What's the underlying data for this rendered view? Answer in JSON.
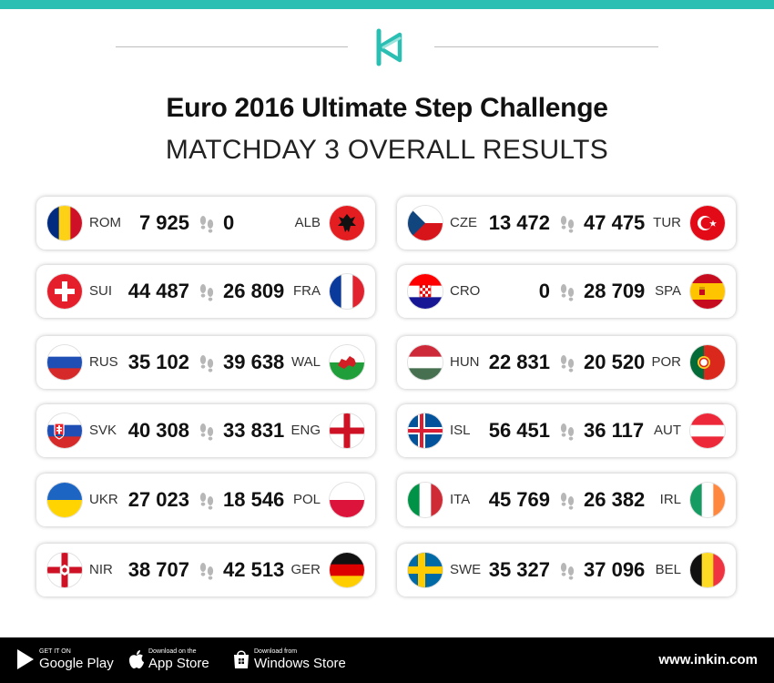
{
  "header": {
    "title": "Euro 2016 Ultimate Step Challenge",
    "subtitle": "MATCHDAY 3 OVERALL RESULTS",
    "accent_color": "#2bbfb3",
    "logo_icon": "inkin-logo-icon"
  },
  "matches": [
    {
      "home": "ROM",
      "home_score": "7 925",
      "away_score": "0",
      "away": "ALB"
    },
    {
      "home": "SUI",
      "home_score": "44 487",
      "away_score": "26 809",
      "away": "FRA"
    },
    {
      "home": "RUS",
      "home_score": "35 102",
      "away_score": "39 638",
      "away": "WAL"
    },
    {
      "home": "SVK",
      "home_score": "40 308",
      "away_score": "33 831",
      "away": "ENG"
    },
    {
      "home": "UKR",
      "home_score": "27 023",
      "away_score": "18 546",
      "away": "POL"
    },
    {
      "home": "NIR",
      "home_score": "38 707",
      "away_score": "42 513",
      "away": "GER"
    },
    {
      "home": "CZE",
      "home_score": "13 472",
      "away_score": "47 475",
      "away": "TUR"
    },
    {
      "home": "CRO",
      "home_score": "0",
      "away_score": "28 709",
      "away": "SPA"
    },
    {
      "home": "HUN",
      "home_score": "22 831",
      "away_score": "20 520",
      "away": "POR"
    },
    {
      "home": "ISL",
      "home_score": "56 451",
      "away_score": "36 117",
      "away": "AUT"
    },
    {
      "home": "ITA",
      "home_score": "45 769",
      "away_score": "26 382",
      "away": "IRL"
    },
    {
      "home": "SWE",
      "home_score": "35 327",
      "away_score": "37 096",
      "away": "BEL"
    }
  ],
  "footer": {
    "google_small": "GET IT ON",
    "google_big": "Google Play",
    "apple_small": "Download on the",
    "apple_big": "App Store",
    "windows_small": "Download from",
    "windows_big": "Windows Store",
    "website": "www.inkin.com"
  }
}
